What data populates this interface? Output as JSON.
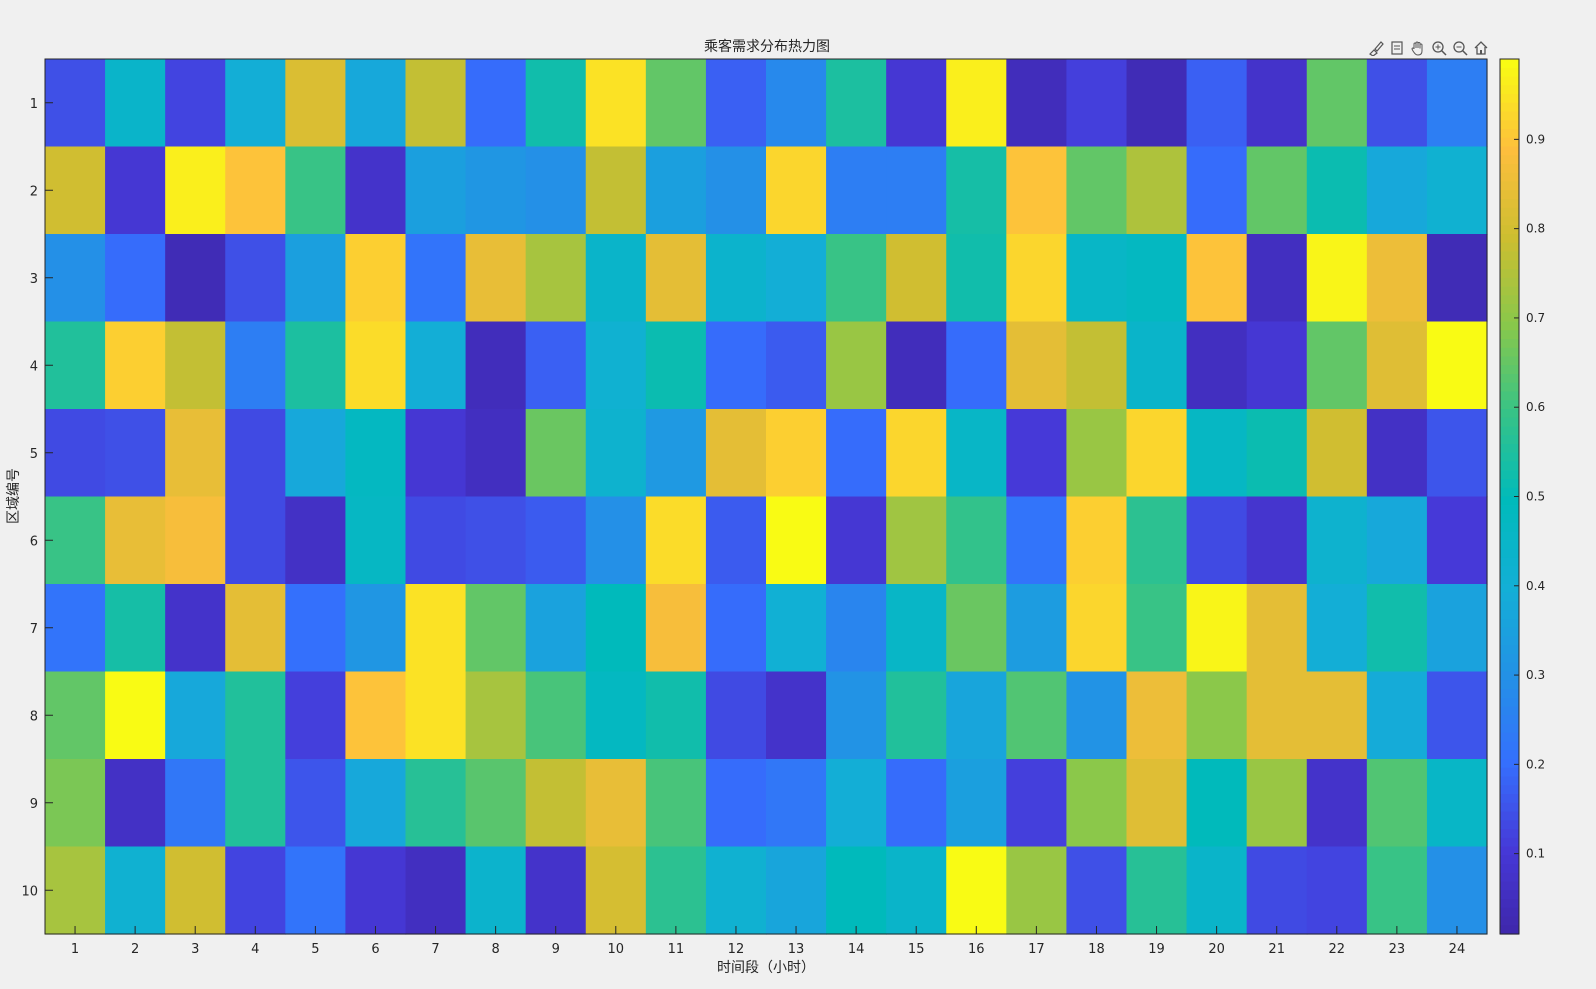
{
  "chart_data": {
    "type": "heatmap",
    "title": "乘客需求分布热力图",
    "xlabel": "时间段（小时）",
    "ylabel": "区域编号",
    "x_categories": [
      "1",
      "2",
      "3",
      "4",
      "5",
      "6",
      "7",
      "8",
      "9",
      "10",
      "11",
      "12",
      "13",
      "14",
      "15",
      "16",
      "17",
      "18",
      "19",
      "20",
      "21",
      "22",
      "23",
      "24"
    ],
    "y_categories": [
      "1",
      "2",
      "3",
      "4",
      "5",
      "6",
      "7",
      "8",
      "9",
      "10"
    ],
    "values": [
      [
        0.15,
        0.45,
        0.13,
        0.4,
        0.82,
        0.38,
        0.78,
        0.2,
        0.53,
        0.95,
        0.65,
        0.18,
        0.28,
        0.55,
        0.1,
        0.97,
        0.05,
        0.12,
        0.04,
        0.18,
        0.08,
        0.65,
        0.15,
        0.25
      ],
      [
        0.8,
        0.1,
        0.97,
        0.9,
        0.6,
        0.08,
        0.35,
        0.32,
        0.3,
        0.78,
        0.35,
        0.3,
        0.93,
        0.25,
        0.25,
        0.54,
        0.9,
        0.65,
        0.75,
        0.2,
        0.65,
        0.52,
        0.38,
        0.42
      ],
      [
        0.3,
        0.2,
        0.04,
        0.15,
        0.35,
        0.92,
        0.22,
        0.85,
        0.74,
        0.45,
        0.84,
        0.44,
        0.4,
        0.6,
        0.8,
        0.53,
        0.93,
        0.46,
        0.48,
        0.9,
        0.06,
        0.98,
        0.86,
        0.04
      ],
      [
        0.56,
        0.92,
        0.78,
        0.25,
        0.55,
        0.94,
        0.4,
        0.05,
        0.18,
        0.42,
        0.52,
        0.2,
        0.17,
        0.72,
        0.05,
        0.2,
        0.84,
        0.78,
        0.45,
        0.06,
        0.1,
        0.65,
        0.83,
        0.99
      ],
      [
        0.14,
        0.15,
        0.85,
        0.14,
        0.38,
        0.48,
        0.1,
        0.06,
        0.66,
        0.43,
        0.33,
        0.84,
        0.92,
        0.2,
        0.93,
        0.46,
        0.11,
        0.72,
        0.93,
        0.47,
        0.52,
        0.8,
        0.07,
        0.16
      ],
      [
        0.6,
        0.85,
        0.88,
        0.14,
        0.07,
        0.47,
        0.14,
        0.15,
        0.17,
        0.3,
        0.94,
        0.17,
        0.99,
        0.1,
        0.73,
        0.59,
        0.22,
        0.92,
        0.58,
        0.14,
        0.09,
        0.43,
        0.38,
        0.11
      ],
      [
        0.22,
        0.54,
        0.08,
        0.84,
        0.21,
        0.32,
        0.95,
        0.65,
        0.36,
        0.5,
        0.88,
        0.2,
        0.41,
        0.27,
        0.46,
        0.66,
        0.34,
        0.93,
        0.6,
        0.98,
        0.84,
        0.4,
        0.53,
        0.36
      ],
      [
        0.65,
        0.99,
        0.38,
        0.56,
        0.12,
        0.9,
        0.95,
        0.74,
        0.62,
        0.48,
        0.53,
        0.14,
        0.08,
        0.31,
        0.56,
        0.37,
        0.63,
        0.31,
        0.86,
        0.7,
        0.84,
        0.84,
        0.39,
        0.16
      ],
      [
        0.68,
        0.07,
        0.23,
        0.56,
        0.16,
        0.38,
        0.57,
        0.64,
        0.78,
        0.85,
        0.62,
        0.2,
        0.23,
        0.4,
        0.2,
        0.35,
        0.12,
        0.7,
        0.83,
        0.5,
        0.72,
        0.08,
        0.63,
        0.46
      ],
      [
        0.74,
        0.42,
        0.8,
        0.13,
        0.22,
        0.1,
        0.06,
        0.44,
        0.08,
        0.81,
        0.58,
        0.42,
        0.37,
        0.5,
        0.45,
        0.99,
        0.72,
        0.15,
        0.57,
        0.45,
        0.14,
        0.13,
        0.6,
        0.3
      ]
    ],
    "colorbar": {
      "colormap": "parula",
      "range": [
        0.01,
        0.99
      ],
      "ticks": [
        0.1,
        0.2,
        0.3,
        0.4,
        0.5,
        0.6,
        0.7,
        0.8,
        0.9
      ],
      "tick_labels": [
        "0.1",
        "0.2",
        "0.3",
        "0.4",
        "0.5",
        "0.6",
        "0.7",
        "0.8",
        "0.9"
      ]
    },
    "grid": false
  },
  "toolbar": {
    "icons": [
      "brush-icon",
      "datatip-icon",
      "pan-icon",
      "zoom-in-icon",
      "zoom-out-icon",
      "home-icon"
    ]
  },
  "colors": {
    "background": "#f0f0f0",
    "axis": "#262626"
  }
}
